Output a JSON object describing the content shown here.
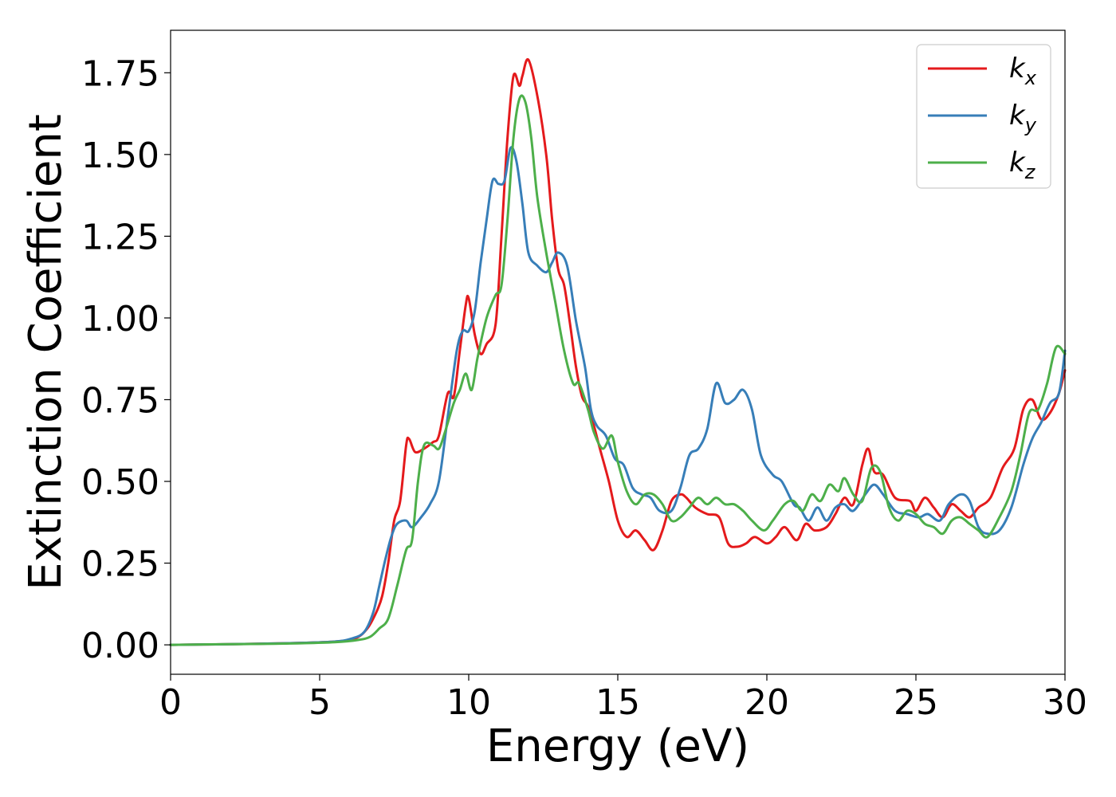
{
  "chart_data": {
    "type": "line",
    "title": "",
    "xlabel": "Energy (eV)",
    "ylabel": "Extinction Coefficient",
    "xlim": [
      0,
      30
    ],
    "ylim": [
      -0.09,
      1.88
    ],
    "xticks": [
      0,
      5,
      10,
      15,
      20,
      25,
      30
    ],
    "xtick_labels": [
      "0",
      "5",
      "10",
      "15",
      "20",
      "25",
      "30"
    ],
    "yticks": [
      0,
      0.25,
      0.5,
      0.75,
      1.0,
      1.25,
      1.5,
      1.75
    ],
    "ytick_labels": [
      "0.00",
      "0.25",
      "0.50",
      "0.75",
      "1.00",
      "1.25",
      "1.50",
      "1.75"
    ],
    "grid": false,
    "legend_position": "top-right",
    "series": [
      {
        "name": "k_x",
        "label_base": "k",
        "label_sub": "x",
        "color": "#e41a1c",
        "points": [
          [
            0,
            0
          ],
          [
            2,
            0.002
          ],
          [
            4,
            0.005
          ],
          [
            5.5,
            0.01
          ],
          [
            6.2,
            0.02
          ],
          [
            6.6,
            0.05
          ],
          [
            6.9,
            0.1
          ],
          [
            7.1,
            0.15
          ],
          [
            7.3,
            0.25
          ],
          [
            7.5,
            0.38
          ],
          [
            7.7,
            0.44
          ],
          [
            7.9,
            0.61
          ],
          [
            8.0,
            0.63
          ],
          [
            8.2,
            0.59
          ],
          [
            8.5,
            0.6
          ],
          [
            8.8,
            0.62
          ],
          [
            9.0,
            0.64
          ],
          [
            9.3,
            0.77
          ],
          [
            9.5,
            0.76
          ],
          [
            9.7,
            0.9
          ],
          [
            9.9,
            1.04
          ],
          [
            10.0,
            1.06
          ],
          [
            10.2,
            0.95
          ],
          [
            10.4,
            0.89
          ],
          [
            10.6,
            0.92
          ],
          [
            10.9,
            0.98
          ],
          [
            11.1,
            1.25
          ],
          [
            11.3,
            1.55
          ],
          [
            11.5,
            1.74
          ],
          [
            11.7,
            1.71
          ],
          [
            11.8,
            1.74
          ],
          [
            12.0,
            1.79
          ],
          [
            12.3,
            1.68
          ],
          [
            12.6,
            1.5
          ],
          [
            12.8,
            1.3
          ],
          [
            13.0,
            1.15
          ],
          [
            13.2,
            1.1
          ],
          [
            13.4,
            0.98
          ],
          [
            13.6,
            0.85
          ],
          [
            13.8,
            0.76
          ],
          [
            14.0,
            0.73
          ],
          [
            14.2,
            0.67
          ],
          [
            14.4,
            0.6
          ],
          [
            14.7,
            0.5
          ],
          [
            15.0,
            0.38
          ],
          [
            15.3,
            0.33
          ],
          [
            15.6,
            0.35
          ],
          [
            15.9,
            0.32
          ],
          [
            16.2,
            0.29
          ],
          [
            16.5,
            0.35
          ],
          [
            16.8,
            0.44
          ],
          [
            17.1,
            0.46
          ],
          [
            17.3,
            0.45
          ],
          [
            17.6,
            0.42
          ],
          [
            18.0,
            0.4
          ],
          [
            18.4,
            0.39
          ],
          [
            18.7,
            0.31
          ],
          [
            19.0,
            0.3
          ],
          [
            19.3,
            0.31
          ],
          [
            19.6,
            0.33
          ],
          [
            20.0,
            0.31
          ],
          [
            20.3,
            0.33
          ],
          [
            20.6,
            0.36
          ],
          [
            21.0,
            0.32
          ],
          [
            21.3,
            0.37
          ],
          [
            21.6,
            0.35
          ],
          [
            22.0,
            0.36
          ],
          [
            22.3,
            0.4
          ],
          [
            22.6,
            0.45
          ],
          [
            22.9,
            0.43
          ],
          [
            23.2,
            0.55
          ],
          [
            23.4,
            0.6
          ],
          [
            23.6,
            0.53
          ],
          [
            23.9,
            0.52
          ],
          [
            24.3,
            0.45
          ],
          [
            24.8,
            0.44
          ],
          [
            25.0,
            0.41
          ],
          [
            25.3,
            0.45
          ],
          [
            25.6,
            0.42
          ],
          [
            25.9,
            0.39
          ],
          [
            26.2,
            0.43
          ],
          [
            26.5,
            0.41
          ],
          [
            26.8,
            0.39
          ],
          [
            27.1,
            0.42
          ],
          [
            27.5,
            0.45
          ],
          [
            27.9,
            0.54
          ],
          [
            28.3,
            0.6
          ],
          [
            28.6,
            0.72
          ],
          [
            28.9,
            0.75
          ],
          [
            29.2,
            0.69
          ],
          [
            29.5,
            0.71
          ],
          [
            29.8,
            0.77
          ],
          [
            30.0,
            0.84
          ]
        ]
      },
      {
        "name": "k_y",
        "label_base": "k",
        "label_sub": "y",
        "color": "#377eb8",
        "points": [
          [
            0,
            0
          ],
          [
            2,
            0.002
          ],
          [
            4,
            0.005
          ],
          [
            5.5,
            0.01
          ],
          [
            6.1,
            0.02
          ],
          [
            6.5,
            0.04
          ],
          [
            6.8,
            0.1
          ],
          [
            7.0,
            0.18
          ],
          [
            7.2,
            0.26
          ],
          [
            7.4,
            0.33
          ],
          [
            7.6,
            0.37
          ],
          [
            7.9,
            0.38
          ],
          [
            8.1,
            0.36
          ],
          [
            8.4,
            0.39
          ],
          [
            8.7,
            0.43
          ],
          [
            9.0,
            0.5
          ],
          [
            9.3,
            0.7
          ],
          [
            9.6,
            0.9
          ],
          [
            9.8,
            0.96
          ],
          [
            10.0,
            0.96
          ],
          [
            10.2,
            1.02
          ],
          [
            10.4,
            1.17
          ],
          [
            10.6,
            1.3
          ],
          [
            10.8,
            1.42
          ],
          [
            11.0,
            1.41
          ],
          [
            11.2,
            1.42
          ],
          [
            11.4,
            1.52
          ],
          [
            11.6,
            1.48
          ],
          [
            11.8,
            1.35
          ],
          [
            12.0,
            1.2
          ],
          [
            12.3,
            1.16
          ],
          [
            12.6,
            1.14
          ],
          [
            12.8,
            1.17
          ],
          [
            13.0,
            1.2
          ],
          [
            13.3,
            1.16
          ],
          [
            13.6,
            0.99
          ],
          [
            13.9,
            0.85
          ],
          [
            14.1,
            0.72
          ],
          [
            14.3,
            0.67
          ],
          [
            14.6,
            0.64
          ],
          [
            14.9,
            0.57
          ],
          [
            15.2,
            0.55
          ],
          [
            15.5,
            0.48
          ],
          [
            15.8,
            0.46
          ],
          [
            16.1,
            0.45
          ],
          [
            16.4,
            0.41
          ],
          [
            16.8,
            0.41
          ],
          [
            17.1,
            0.48
          ],
          [
            17.4,
            0.58
          ],
          [
            17.7,
            0.6
          ],
          [
            18.0,
            0.66
          ],
          [
            18.3,
            0.8
          ],
          [
            18.6,
            0.74
          ],
          [
            18.9,
            0.75
          ],
          [
            19.2,
            0.78
          ],
          [
            19.5,
            0.72
          ],
          [
            19.8,
            0.58
          ],
          [
            20.2,
            0.52
          ],
          [
            20.5,
            0.5
          ],
          [
            20.9,
            0.43
          ],
          [
            21.1,
            0.42
          ],
          [
            21.4,
            0.38
          ],
          [
            21.7,
            0.42
          ],
          [
            22.0,
            0.38
          ],
          [
            22.3,
            0.42
          ],
          [
            22.6,
            0.43
          ],
          [
            22.9,
            0.41
          ],
          [
            23.3,
            0.46
          ],
          [
            23.6,
            0.49
          ],
          [
            23.9,
            0.46
          ],
          [
            24.3,
            0.41
          ],
          [
            24.7,
            0.4
          ],
          [
            25.1,
            0.39
          ],
          [
            25.4,
            0.4
          ],
          [
            25.8,
            0.38
          ],
          [
            26.1,
            0.43
          ],
          [
            26.5,
            0.46
          ],
          [
            26.8,
            0.44
          ],
          [
            27.1,
            0.36
          ],
          [
            27.4,
            0.34
          ],
          [
            27.8,
            0.35
          ],
          [
            28.2,
            0.42
          ],
          [
            28.6,
            0.55
          ],
          [
            28.9,
            0.63
          ],
          [
            29.2,
            0.68
          ],
          [
            29.5,
            0.74
          ],
          [
            29.8,
            0.77
          ],
          [
            30.0,
            0.9
          ]
        ]
      },
      {
        "name": "k_z",
        "label_base": "k",
        "label_sub": "z",
        "color": "#4daf4a",
        "points": [
          [
            0,
            0
          ],
          [
            2,
            0.002
          ],
          [
            4,
            0.004
          ],
          [
            5.5,
            0.008
          ],
          [
            6.3,
            0.015
          ],
          [
            6.7,
            0.025
          ],
          [
            7.0,
            0.05
          ],
          [
            7.3,
            0.08
          ],
          [
            7.6,
            0.18
          ],
          [
            7.9,
            0.29
          ],
          [
            8.1,
            0.32
          ],
          [
            8.3,
            0.5
          ],
          [
            8.5,
            0.61
          ],
          [
            8.8,
            0.61
          ],
          [
            9.0,
            0.6
          ],
          [
            9.2,
            0.65
          ],
          [
            9.5,
            0.74
          ],
          [
            9.7,
            0.78
          ],
          [
            9.9,
            0.83
          ],
          [
            10.1,
            0.78
          ],
          [
            10.3,
            0.88
          ],
          [
            10.6,
            1.0
          ],
          [
            10.9,
            1.07
          ],
          [
            11.1,
            1.1
          ],
          [
            11.3,
            1.3
          ],
          [
            11.5,
            1.55
          ],
          [
            11.7,
            1.67
          ],
          [
            11.9,
            1.66
          ],
          [
            12.1,
            1.55
          ],
          [
            12.3,
            1.37
          ],
          [
            12.6,
            1.2
          ],
          [
            12.9,
            1.05
          ],
          [
            13.2,
            0.9
          ],
          [
            13.5,
            0.8
          ],
          [
            13.7,
            0.8
          ],
          [
            14.0,
            0.72
          ],
          [
            14.2,
            0.65
          ],
          [
            14.5,
            0.6
          ],
          [
            14.8,
            0.64
          ],
          [
            15.0,
            0.56
          ],
          [
            15.3,
            0.47
          ],
          [
            15.6,
            0.43
          ],
          [
            15.9,
            0.46
          ],
          [
            16.2,
            0.46
          ],
          [
            16.5,
            0.43
          ],
          [
            16.8,
            0.38
          ],
          [
            17.1,
            0.39
          ],
          [
            17.4,
            0.42
          ],
          [
            17.7,
            0.45
          ],
          [
            18.0,
            0.43
          ],
          [
            18.3,
            0.45
          ],
          [
            18.6,
            0.43
          ],
          [
            18.9,
            0.43
          ],
          [
            19.2,
            0.41
          ],
          [
            19.5,
            0.38
          ],
          [
            19.9,
            0.35
          ],
          [
            20.2,
            0.38
          ],
          [
            20.6,
            0.43
          ],
          [
            20.9,
            0.44
          ],
          [
            21.2,
            0.41
          ],
          [
            21.5,
            0.46
          ],
          [
            21.8,
            0.44
          ],
          [
            22.1,
            0.49
          ],
          [
            22.4,
            0.47
          ],
          [
            22.6,
            0.51
          ],
          [
            22.9,
            0.46
          ],
          [
            23.2,
            0.44
          ],
          [
            23.5,
            0.54
          ],
          [
            23.8,
            0.53
          ],
          [
            24.1,
            0.42
          ],
          [
            24.4,
            0.38
          ],
          [
            24.7,
            0.41
          ],
          [
            25.0,
            0.4
          ],
          [
            25.3,
            0.37
          ],
          [
            25.6,
            0.36
          ],
          [
            25.9,
            0.34
          ],
          [
            26.2,
            0.38
          ],
          [
            26.5,
            0.39
          ],
          [
            26.8,
            0.37
          ],
          [
            27.1,
            0.35
          ],
          [
            27.4,
            0.33
          ],
          [
            27.8,
            0.39
          ],
          [
            28.2,
            0.47
          ],
          [
            28.5,
            0.58
          ],
          [
            28.8,
            0.71
          ],
          [
            29.1,
            0.72
          ],
          [
            29.4,
            0.8
          ],
          [
            29.7,
            0.91
          ],
          [
            30.0,
            0.89
          ]
        ]
      }
    ]
  }
}
